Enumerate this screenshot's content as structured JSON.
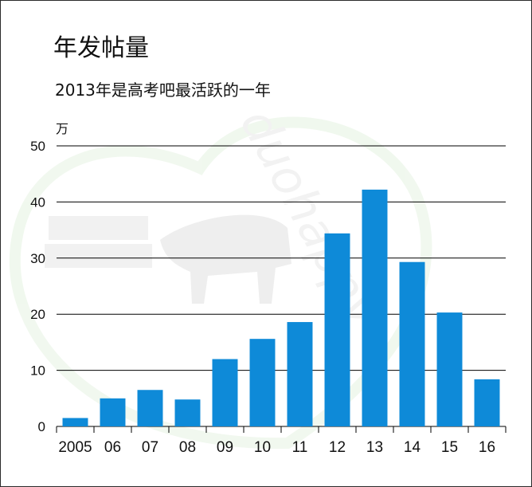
{
  "header": {
    "title": "年发帖量",
    "subtitle": "2013年是高考吧最活跃的一年"
  },
  "watermark": {
    "text": "duohappy"
  },
  "chart_data": {
    "type": "bar",
    "categories": [
      "2005",
      "06",
      "07",
      "08",
      "09",
      "10",
      "11",
      "12",
      "13",
      "14",
      "15",
      "16"
    ],
    "values": [
      1.5,
      5,
      6.5,
      4.8,
      12,
      15.6,
      18.6,
      34.4,
      42.2,
      29.3,
      20.3,
      8.4
    ],
    "ylabel": "万",
    "ylim": [
      0,
      50
    ],
    "yticks": [
      0,
      10,
      20,
      30,
      40,
      50
    ],
    "grid": true,
    "bar_color": "#0e8ad8"
  }
}
